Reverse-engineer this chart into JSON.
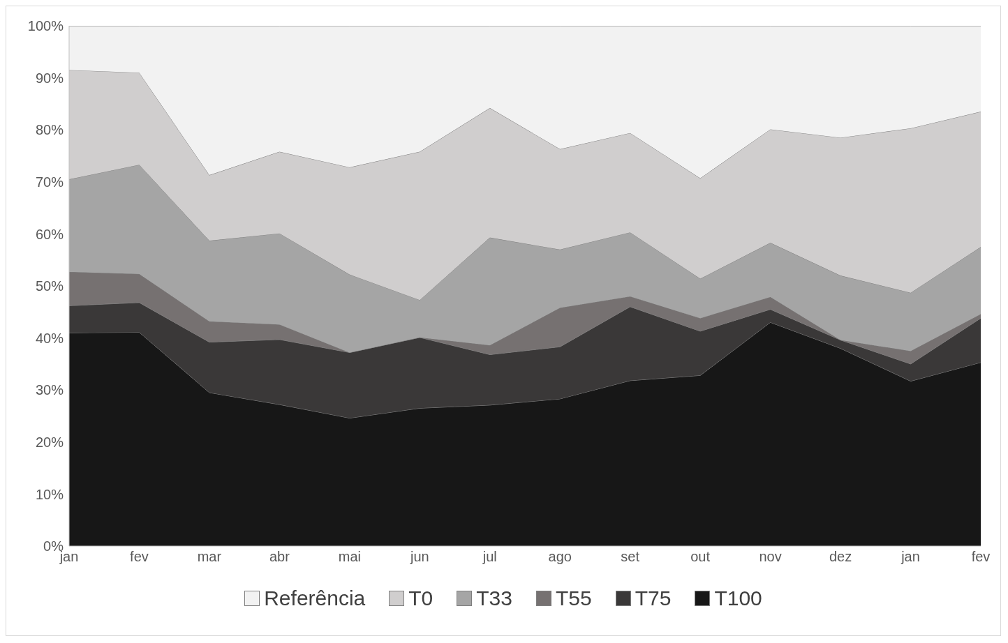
{
  "chart_data": {
    "type": "area",
    "stacked": true,
    "categories": [
      "jan",
      "fev",
      "mar",
      "abr",
      "mai",
      "jun",
      "jul",
      "ago",
      "set",
      "out",
      "nov",
      "dez",
      "jan",
      "fev"
    ],
    "series": [
      {
        "name": "T100",
        "color": "#171717",
        "values": [
          41,
          41.1,
          29.5,
          27.2,
          24.6,
          26.5,
          27.1,
          28.3,
          31.8,
          32.8,
          43,
          38,
          31.7,
          35.3
        ]
      },
      {
        "name": "T75",
        "color": "#3a3838",
        "values": [
          5.2,
          5.7,
          9.7,
          12.5,
          12.6,
          13.6,
          9.7,
          10,
          14.2,
          8.5,
          2.5,
          1.6,
          3.3,
          8.5
        ]
      },
      {
        "name": "T55",
        "color": "#767171",
        "values": [
          6.5,
          5.5,
          4,
          2.9,
          0,
          0,
          1.8,
          7.5,
          2,
          2.5,
          2.4,
          0,
          2.5,
          0.8
        ]
      },
      {
        "name": "T33",
        "color": "#a5a5a5",
        "values": [
          17.8,
          21,
          15.5,
          17.5,
          15,
          7.2,
          20.7,
          11.2,
          12.3,
          7.6,
          10.4,
          12.4,
          11.2,
          12.9
        ]
      },
      {
        "name": "T0",
        "color": "#d0cece",
        "values": [
          21,
          17.7,
          12.6,
          15.7,
          20.6,
          28.5,
          24.9,
          19.3,
          19.1,
          19.3,
          21.8,
          26.5,
          31.6,
          26
        ]
      },
      {
        "name": "Referência",
        "color": "#f2f2f2",
        "values": [
          8.5,
          9,
          28.7,
          24.2,
          27.2,
          24.2,
          15.8,
          23.7,
          20.6,
          29.3,
          19.9,
          21.5,
          19.7,
          16.5
        ]
      }
    ],
    "ylim": [
      0,
      100
    ],
    "yticks": [
      {
        "value": 0,
        "label": "0%"
      },
      {
        "value": 10,
        "label": "10%"
      },
      {
        "value": 20,
        "label": "20%"
      },
      {
        "value": 30,
        "label": "30%"
      },
      {
        "value": 40,
        "label": "40%"
      },
      {
        "value": 50,
        "label": "50%"
      },
      {
        "value": 60,
        "label": "60%"
      },
      {
        "value": 70,
        "label": "70%"
      },
      {
        "value": 80,
        "label": "80%"
      },
      {
        "value": 90,
        "label": "90%"
      },
      {
        "value": 100,
        "label": "100%"
      }
    ],
    "grid": false,
    "legend": "bottom"
  }
}
